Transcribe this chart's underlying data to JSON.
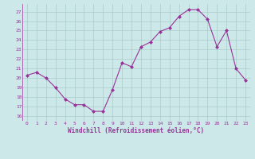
{
  "x": [
    0,
    1,
    2,
    3,
    4,
    5,
    6,
    7,
    8,
    9,
    10,
    11,
    12,
    13,
    14,
    15,
    16,
    17,
    18,
    19,
    20,
    21,
    22,
    23
  ],
  "y": [
    20.3,
    20.6,
    20.0,
    19.0,
    17.8,
    17.2,
    17.2,
    16.5,
    16.5,
    18.8,
    21.6,
    21.2,
    23.3,
    23.8,
    24.9,
    25.3,
    26.5,
    27.2,
    27.2,
    26.2,
    23.3,
    25.0,
    21.0,
    19.8
  ],
  "line_color": "#993399",
  "marker": "D",
  "marker_size": 2,
  "bg_color": "#cce8e8",
  "grid_color": "#aacccc",
  "xlabel": "Windchill (Refroidissement éolien,°C)",
  "xlabel_color": "#993399",
  "tick_color": "#993399",
  "yticks": [
    16,
    17,
    18,
    19,
    20,
    21,
    22,
    23,
    24,
    25,
    26,
    27
  ],
  "xticks": [
    0,
    1,
    2,
    3,
    4,
    5,
    6,
    7,
    8,
    9,
    10,
    11,
    12,
    13,
    14,
    15,
    16,
    17,
    18,
    19,
    20,
    21,
    22,
    23
  ],
  "figsize": [
    3.2,
    2.0
  ],
  "dpi": 100
}
